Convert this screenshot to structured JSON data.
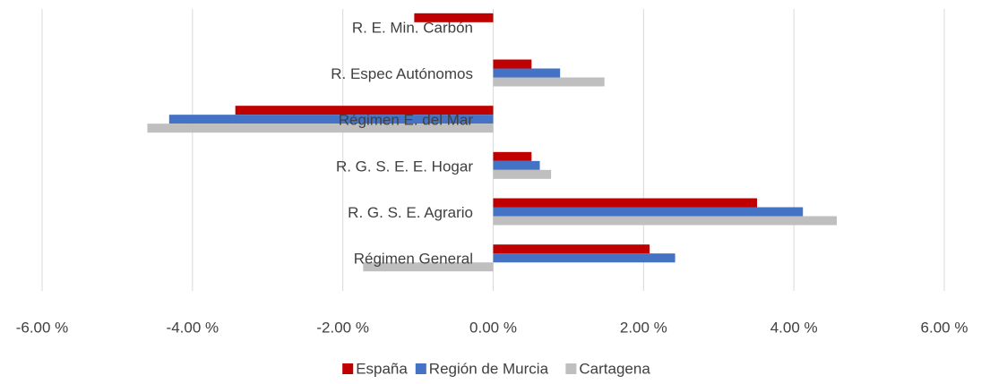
{
  "chart_data": {
    "type": "hbar",
    "categories": [
      "R. E. Min. Carbón",
      "R. Espec Autónomos",
      "Régimen E. del Mar",
      "R. G. S. E. E. Hogar",
      "R. G. S. E. Agrario",
      "Régimen General"
    ],
    "series": [
      {
        "name": "España",
        "color": "#c00000",
        "values": [
          -1.05,
          0.51,
          -3.43,
          0.51,
          3.51,
          2.08
        ]
      },
      {
        "name": "Región de Murcia",
        "color": "#4472c4",
        "values": [
          0,
          0.89,
          -4.31,
          0.62,
          4.12,
          2.42
        ]
      },
      {
        "name": "Cartagena",
        "color": "#bfbfbf",
        "values": [
          0,
          1.48,
          -4.6,
          0.77,
          4.57,
          -1.73
        ]
      }
    ],
    "xlim": [
      -6,
      6
    ],
    "xticks": [
      {
        "value": -6,
        "label": "-6.00 %"
      },
      {
        "value": -4,
        "label": "-4.00 %"
      },
      {
        "value": -2,
        "label": "-2.00 %"
      },
      {
        "value": 0,
        "label": "0.00 %"
      },
      {
        "value": 2,
        "label": "2.00 %"
      },
      {
        "value": 4,
        "label": "4.00 %"
      },
      {
        "value": 6,
        "label": "6.00 %"
      }
    ],
    "grid": true,
    "legend": "bottom"
  }
}
